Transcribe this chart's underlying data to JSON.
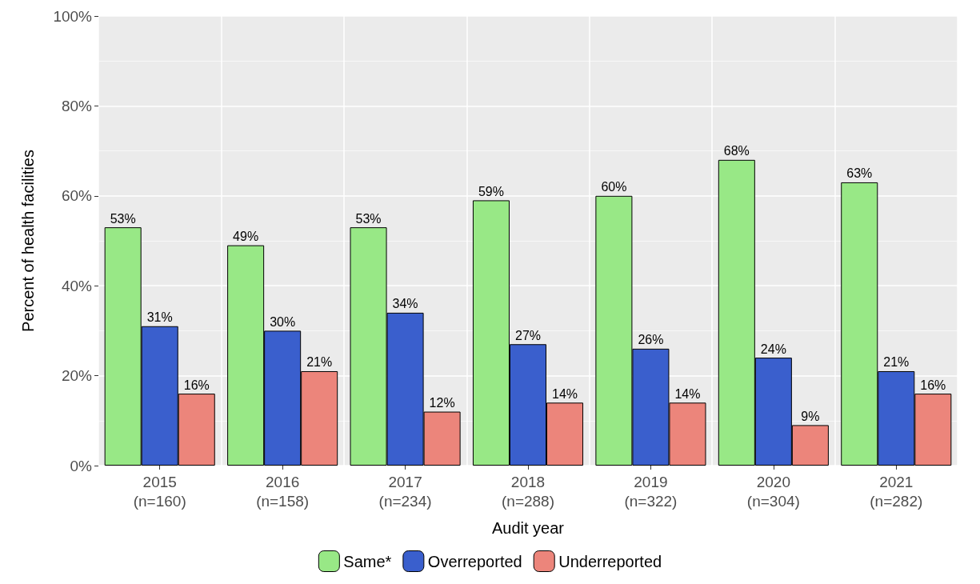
{
  "chart_data": {
    "type": "bar",
    "xlabel": "Audit year",
    "ylabel": "Percent of health facilities",
    "categories": [
      "2015\n(n=160)",
      "2016\n(n=158)",
      "2017\n(n=234)",
      "2018\n(n=288)",
      "2019\n(n=322)",
      "2020\n(n=304)",
      "2021\n(n=282)"
    ],
    "series": [
      {
        "name": "Same*",
        "color": "#98e886",
        "values": [
          53,
          49,
          53,
          59,
          60,
          68,
          63
        ],
        "value_labels": [
          "53%",
          "49%",
          "53%",
          "59%",
          "60%",
          "68%",
          "63%"
        ]
      },
      {
        "name": "Overreported",
        "color": "#3a5fcd",
        "values": [
          31,
          30,
          34,
          27,
          26,
          24,
          21
        ],
        "value_labels": [
          "31%",
          "30%",
          "34%",
          "27%",
          "26%",
          "24%",
          "21%"
        ]
      },
      {
        "name": "Underreported",
        "color": "#ec857b",
        "values": [
          16,
          21,
          12,
          14,
          14,
          9,
          16
        ],
        "value_labels": [
          "16%",
          "21%",
          "12%",
          "14%",
          "14%",
          "9%",
          "16%"
        ]
      }
    ],
    "ylim": [
      0,
      100
    ],
    "yticks": [
      {
        "value": 0,
        "label": "0%"
      },
      {
        "value": 20,
        "label": "20%"
      },
      {
        "value": 40,
        "label": "40%"
      },
      {
        "value": 60,
        "label": "60%"
      },
      {
        "value": 80,
        "label": "80%"
      },
      {
        "value": 100,
        "label": "100%"
      }
    ],
    "grid": true,
    "legend": "bottom"
  }
}
